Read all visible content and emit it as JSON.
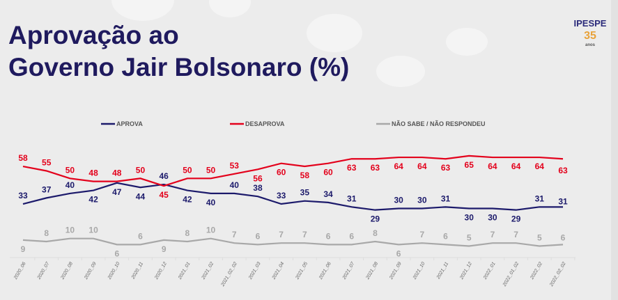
{
  "title_line1": "Aprovação ao",
  "title_line2": "Governo Jair Bolsonaro (%)",
  "logo": {
    "name": "IPESPE",
    "number": "35",
    "sub": "anos"
  },
  "chart_data": {
    "type": "line",
    "title": "Aprovação ao Governo Jair Bolsonaro (%)",
    "legend_position": "top",
    "grid": false,
    "ylim": [
      0,
      70
    ],
    "categories": [
      "2020_06",
      "2020_07",
      "2020_08",
      "2020_09",
      "2020_10",
      "2020_11",
      "2020_12",
      "2021_01",
      "2021_02",
      "2021_02_02",
      "2021_03",
      "2021_04",
      "2021_05",
      "2021_06",
      "2021_07",
      "2021_08",
      "2021_09",
      "2021_10",
      "2021_11",
      "2021_12",
      "2022_01",
      "2022_01_02",
      "2022_02",
      "2022_02_02"
    ],
    "series": [
      {
        "name": "APROVA",
        "color": "#1c1a6b",
        "values": [
          33,
          37,
          40,
          42,
          47,
          44,
          46,
          42,
          40,
          40,
          38,
          33,
          35,
          34,
          31,
          29,
          30,
          30,
          31,
          30,
          30,
          29,
          31,
          31
        ]
      },
      {
        "name": "DESAPROVA",
        "color": "#e3001b",
        "values": [
          58,
          55,
          50,
          48,
          48,
          50,
          45,
          50,
          50,
          53,
          56,
          60,
          58,
          60,
          63,
          63,
          64,
          64,
          63,
          65,
          64,
          64,
          64,
          63
        ]
      },
      {
        "name": "NÃO SABE / NÃO RESPONDEU",
        "color": "#a8a8a8",
        "values": [
          9,
          8,
          10,
          10,
          6,
          6,
          9,
          8,
          10,
          7,
          6,
          7,
          7,
          6,
          6,
          8,
          6,
          7,
          6,
          5,
          7,
          7,
          5,
          6
        ]
      }
    ]
  }
}
